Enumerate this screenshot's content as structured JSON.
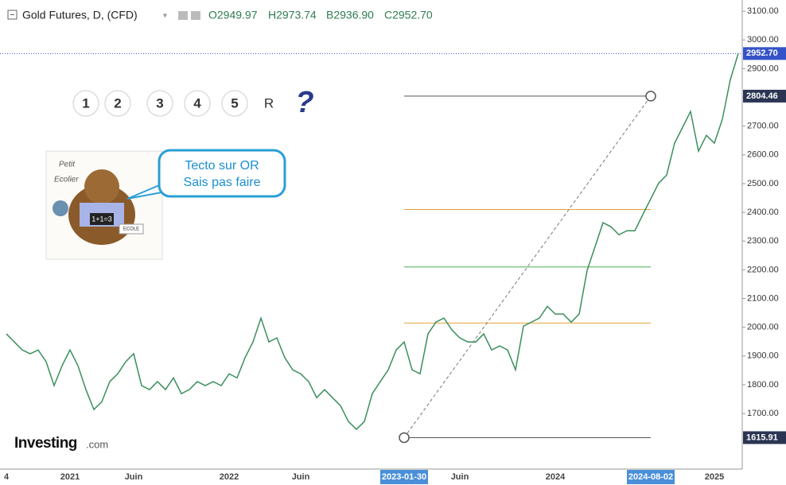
{
  "chart_data": {
    "type": "line",
    "header": {
      "title": "Gold Futures, D, (CFD)",
      "open": "O2949.97",
      "high": "H2973.74",
      "low": "B2936.90",
      "close": "C2952.70"
    },
    "categories": [
      "4",
      null,
      null,
      null,
      null,
      null,
      null,
      null,
      "2021",
      null,
      null,
      null,
      null,
      null,
      null,
      null,
      "Juin",
      null,
      null,
      null,
      null,
      null,
      null,
      null,
      null,
      null,
      null,
      null,
      "2022",
      null,
      null,
      null,
      null,
      null,
      null,
      null,
      null,
      "Juin",
      null,
      null,
      null,
      null,
      null,
      null,
      null,
      null,
      null,
      null,
      null,
      null,
      "2023-01-30",
      null,
      null,
      null,
      null,
      null,
      null,
      "Juin",
      null,
      null,
      null,
      null,
      null,
      null,
      null,
      null,
      null,
      null,
      null,
      "2024",
      null,
      null,
      null,
      null,
      null,
      null,
      null,
      null,
      null,
      null,
      null,
      "2024-08-02",
      null,
      null,
      null,
      null,
      null,
      null,
      null,
      "2025",
      null,
      null,
      null
    ],
    "values": [
      1977,
      1949,
      1921,
      1908,
      1921,
      1880,
      1797,
      1866,
      1921,
      1866,
      1783,
      1714,
      1741,
      1811,
      1838,
      1880,
      1908,
      1797,
      1783,
      1811,
      1783,
      1824,
      1769,
      1783,
      1811,
      1797,
      1811,
      1797,
      1838,
      1824,
      1894,
      1949,
      2032,
      1949,
      1963,
      1894,
      1852,
      1838,
      1811,
      1755,
      1783,
      1755,
      1727,
      1672,
      1645,
      1672,
      1769,
      1811,
      1852,
      1921,
      1949,
      1852,
      1838,
      1977,
      2018,
      2032,
      1991,
      1963,
      1949,
      1949,
      1977,
      1921,
      1935,
      1921,
      1852,
      2004,
      2018,
      2032,
      2073,
      2046,
      2046,
      2018,
      2046,
      2198,
      2281,
      2364,
      2350,
      2322,
      2336,
      2336,
      2392,
      2447,
      2502,
      2530,
      2641,
      2696,
      2751,
      2613,
      2668,
      2641,
      2724,
      2862,
      2952.7
    ],
    "color": "#3a8f5c",
    "ylim": [
      1512,
      3139
    ],
    "yticks": [
      {
        "value": 1700,
        "label": "1700.00"
      },
      {
        "value": 1800,
        "label": "1800.00"
      },
      {
        "value": 1900,
        "label": "1900.00"
      },
      {
        "value": 2000,
        "label": "2000.00"
      },
      {
        "value": 2100,
        "label": "2100.00"
      },
      {
        "value": 2200,
        "label": "2200.00"
      },
      {
        "value": 2300,
        "label": "2300.00"
      },
      {
        "value": 2400,
        "label": "2400.00"
      },
      {
        "value": 2500,
        "label": "2500.00"
      },
      {
        "value": 2600,
        "label": "2600.00"
      },
      {
        "value": 2700,
        "label": "2700.00"
      },
      {
        "value": 2800,
        "label": "2800.00"
      },
      {
        "value": 2900,
        "label": "2900.00"
      },
      {
        "value": 3000,
        "label": "3000.00"
      },
      {
        "value": 3100,
        "label": "3100.00"
      }
    ],
    "last_price": {
      "value": 2952.7,
      "label": "2952.70"
    },
    "trend_line": {
      "x": [
        "2023-01-30",
        "2024-08-02"
      ],
      "y": [
        1615.91,
        2804.46
      ],
      "value_labels": [
        "1615.91",
        "2804.46"
      ]
    },
    "fib_levels": [
      {
        "value": 2410,
        "color": "#e3a236"
      },
      {
        "value": 2210,
        "color": "#4caf50"
      },
      {
        "value": 2015,
        "color": "#e3a236"
      }
    ],
    "buttons": [
      {
        "label": "1",
        "color": "#e02020"
      },
      {
        "label": "2",
        "color": "#2a3a8c"
      },
      {
        "label": "3",
        "color": "#e02020"
      },
      {
        "label": "4",
        "color": "#2a3a8c"
      },
      {
        "label": "5",
        "color": "#e02020"
      },
      {
        "label": "R",
        "color": "#2a3a8c"
      }
    ],
    "help": "?",
    "image": {
      "line1": "Petit",
      "line2": "Ecolier",
      "sign": "1+1=3",
      "badge": "ECOLE"
    },
    "bubble": [
      "Tecto sur OR",
      "Sais pas faire"
    ],
    "logo": {
      "brand": "Investing",
      "suffix": ".com"
    }
  }
}
